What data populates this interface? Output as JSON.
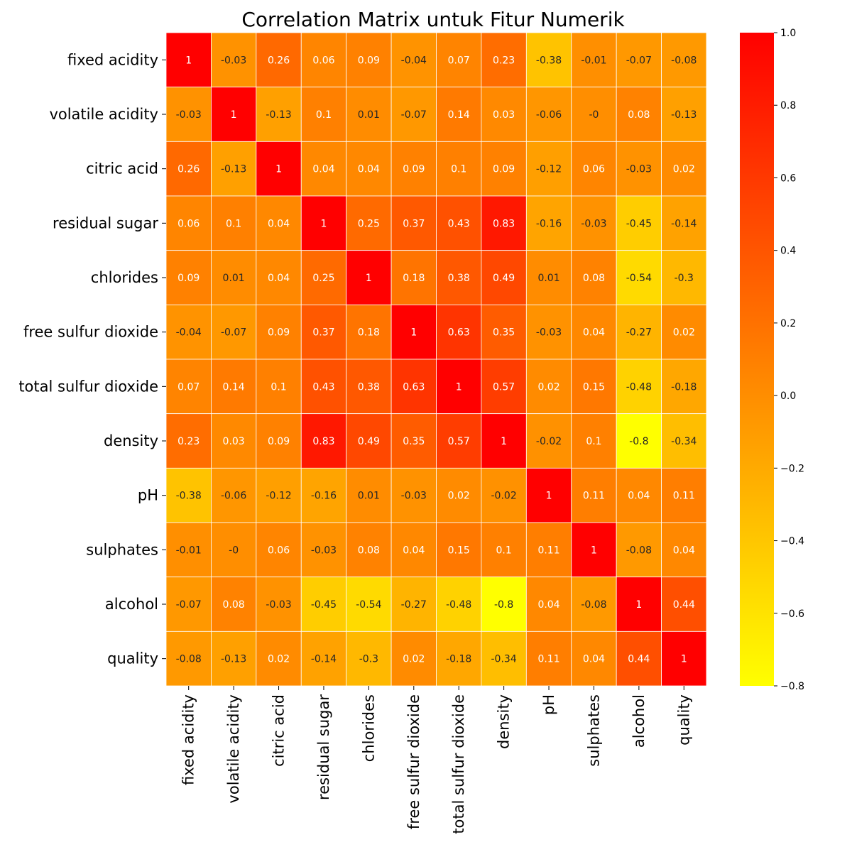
{
  "chart_data": {
    "type": "heatmap",
    "title": "Correlation Matrix untuk Fitur Numerik",
    "xlabel": "",
    "ylabel": "",
    "labels": [
      "fixed acidity",
      "volatile acidity",
      "citric acid",
      "residual sugar",
      "chlorides",
      "free sulfur dioxide",
      "total sulfur dioxide",
      "density",
      "pH",
      "sulphates",
      "alcohol",
      "quality"
    ],
    "matrix": [
      [
        1,
        -0.03,
        0.26,
        0.06,
        0.09,
        -0.04,
        0.07,
        0.23,
        -0.38,
        -0.01,
        -0.07,
        -0.08
      ],
      [
        -0.03,
        1,
        -0.13,
        0.1,
        0.01,
        -0.07,
        0.14,
        0.03,
        -0.06,
        0,
        0.08,
        -0.13
      ],
      [
        0.26,
        -0.13,
        1,
        0.04,
        0.04,
        0.09,
        0.1,
        0.09,
        -0.12,
        0.06,
        -0.03,
        0.02
      ],
      [
        0.06,
        0.1,
        0.04,
        1,
        0.25,
        0.37,
        0.43,
        0.83,
        -0.16,
        -0.03,
        -0.45,
        -0.14
      ],
      [
        0.09,
        0.01,
        0.04,
        0.25,
        1,
        0.18,
        0.38,
        0.49,
        0.01,
        0.08,
        -0.54,
        -0.3
      ],
      [
        -0.04,
        -0.07,
        0.09,
        0.37,
        0.18,
        1,
        0.63,
        0.35,
        -0.03,
        0.04,
        -0.27,
        0.02
      ],
      [
        0.07,
        0.14,
        0.1,
        0.43,
        0.38,
        0.63,
        1,
        0.57,
        0.02,
        0.15,
        -0.48,
        -0.18
      ],
      [
        0.23,
        0.03,
        0.09,
        0.83,
        0.49,
        0.35,
        0.57,
        1,
        -0.02,
        0.1,
        -0.8,
        -0.34
      ],
      [
        -0.38,
        -0.06,
        -0.12,
        -0.16,
        0.01,
        -0.03,
        0.02,
        -0.02,
        1,
        0.11,
        0.04,
        0.11
      ],
      [
        -0.01,
        0,
        0.06,
        -0.03,
        0.08,
        0.04,
        0.15,
        0.1,
        0.11,
        1,
        -0.08,
        0.04
      ],
      [
        -0.07,
        0.08,
        -0.03,
        -0.45,
        -0.54,
        -0.27,
        -0.48,
        -0.8,
        0.04,
        -0.08,
        1,
        0.44
      ],
      [
        -0.08,
        -0.13,
        0.02,
        -0.14,
        -0.3,
        0.02,
        -0.18,
        -0.34,
        0.11,
        0.04,
        0.44,
        1
      ]
    ],
    "cell_labels": [
      [
        "1",
        "-0.03",
        "0.26",
        "0.06",
        "0.09",
        "-0.04",
        "0.07",
        "0.23",
        "-0.38",
        "-0.01",
        "-0.07",
        "-0.08"
      ],
      [
        "-0.03",
        "1",
        "-0.13",
        "0.1",
        "0.01",
        "-0.07",
        "0.14",
        "0.03",
        "-0.06",
        "-0",
        "0.08",
        "-0.13"
      ],
      [
        "0.26",
        "-0.13",
        "1",
        "0.04",
        "0.04",
        "0.09",
        "0.1",
        "0.09",
        "-0.12",
        "0.06",
        "-0.03",
        "0.02"
      ],
      [
        "0.06",
        "0.1",
        "0.04",
        "1",
        "0.25",
        "0.37",
        "0.43",
        "0.83",
        "-0.16",
        "-0.03",
        "-0.45",
        "-0.14"
      ],
      [
        "0.09",
        "0.01",
        "0.04",
        "0.25",
        "1",
        "0.18",
        "0.38",
        "0.49",
        "0.01",
        "0.08",
        "-0.54",
        "-0.3"
      ],
      [
        "-0.04",
        "-0.07",
        "0.09",
        "0.37",
        "0.18",
        "1",
        "0.63",
        "0.35",
        "-0.03",
        "0.04",
        "-0.27",
        "0.02"
      ],
      [
        "0.07",
        "0.14",
        "0.1",
        "0.43",
        "0.38",
        "0.63",
        "1",
        "0.57",
        "0.02",
        "0.15",
        "-0.48",
        "-0.18"
      ],
      [
        "0.23",
        "0.03",
        "0.09",
        "0.83",
        "0.49",
        "0.35",
        "0.57",
        "1",
        "-0.02",
        "0.1",
        "-0.8",
        "-0.34"
      ],
      [
        "-0.38",
        "-0.06",
        "-0.12",
        "-0.16",
        "0.01",
        "-0.03",
        "0.02",
        "-0.02",
        "1",
        "0.11",
        "0.04",
        "0.11"
      ],
      [
        "-0.01",
        "-0",
        "0.06",
        "-0.03",
        "0.08",
        "0.04",
        "0.15",
        "0.1",
        "0.11",
        "1",
        "-0.08",
        "0.04"
      ],
      [
        "-0.07",
        "0.08",
        "-0.03",
        "-0.45",
        "-0.54",
        "-0.27",
        "-0.48",
        "-0.8",
        "0.04",
        "-0.08",
        "1",
        "0.44"
      ],
      [
        "-0.08",
        "-0.13",
        "0.02",
        "-0.14",
        "-0.3",
        "0.02",
        "-0.18",
        "-0.34",
        "0.11",
        "0.04",
        "0.44",
        "1"
      ]
    ],
    "colormap": "autumn_r",
    "color_low": "#ffff00",
    "color_high": "#ff0000",
    "vmin": -0.8,
    "vmax": 1.0,
    "colorbar": {
      "ticks": [
        1.0,
        0.8,
        0.6,
        0.4,
        0.2,
        0.0,
        -0.2,
        -0.4,
        -0.6,
        -0.8
      ],
      "tick_labels": [
        "1.0",
        "0.8",
        "0.6",
        "0.4",
        "0.2",
        "0.0",
        "−0.2",
        "−0.4",
        "−0.6",
        "−0.8"
      ]
    },
    "grid": true
  }
}
